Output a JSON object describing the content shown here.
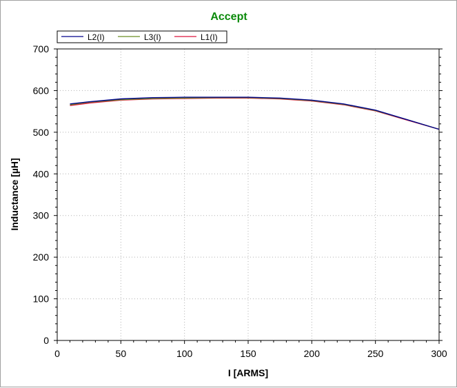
{
  "chart_data": {
    "type": "line",
    "title": "Accept",
    "title_color": "#0a8a0a",
    "xlabel": "I [ARMS]",
    "ylabel": "Inductance [µH]",
    "xlim": [
      0,
      300
    ],
    "ylim": [
      0,
      700
    ],
    "x_ticks": [
      "0",
      "50",
      "100",
      "150",
      "200",
      "250",
      "300"
    ],
    "y_ticks": [
      "0",
      "100",
      "200",
      "300",
      "400",
      "500",
      "600",
      "700"
    ],
    "grid": true,
    "legend_position": "top-left",
    "series": [
      {
        "name": "L2(I)",
        "color": "#00008b",
        "x": [
          10,
          25,
          50,
          75,
          100,
          125,
          150,
          175,
          200,
          225,
          250,
          275,
          300
        ],
        "y": [
          568,
          573,
          580,
          583,
          584,
          584,
          584,
          582,
          577,
          568,
          553,
          530,
          507
        ]
      },
      {
        "name": "L3(I)",
        "color": "#6b8e23",
        "x": [
          10,
          25,
          50,
          75,
          100,
          125,
          150,
          175,
          200,
          225,
          250,
          275,
          300
        ],
        "y": [
          566,
          572,
          578,
          581,
          582,
          583,
          583,
          581,
          576,
          567,
          552,
          530,
          507
        ]
      },
      {
        "name": "L1(I)",
        "color": "#dc143c",
        "x": [
          10,
          25,
          50,
          75,
          100,
          125,
          150,
          175,
          200,
          225,
          250,
          275,
          300
        ],
        "y": [
          564,
          570,
          577,
          580,
          581,
          582,
          582,
          580,
          575,
          566,
          551,
          529,
          507
        ]
      }
    ]
  }
}
